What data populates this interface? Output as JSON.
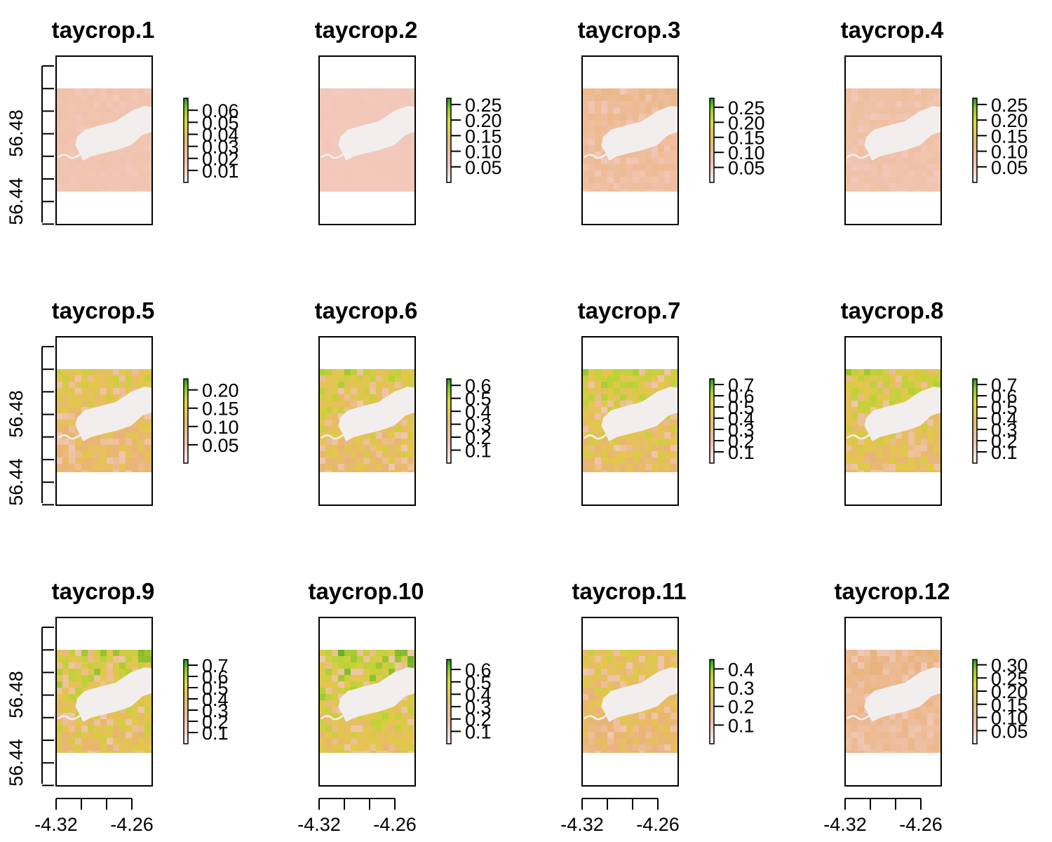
{
  "colors": {
    "water": "#f2eeee",
    "low": "#f2c9bd",
    "mid_low": "#e9b27b",
    "mid": "#e3c84a",
    "mid_high": "#b3d630",
    "high": "#2c9a20",
    "frame": "#000000"
  },
  "x_ticks": [
    "-4.32",
    "-4.26"
  ],
  "y_ticks": [
    "56.44",
    "56.48"
  ],
  "chart_data": [
    {
      "type": "heatmap",
      "title": "taycrop.1",
      "legend_ticks": [
        "0.01",
        "0.02",
        "0.03",
        "0.04",
        "0.05",
        "0.06"
      ],
      "legend_range": [
        0.0,
        0.07
      ],
      "level": 0.08
    },
    {
      "type": "heatmap",
      "title": "taycrop.2",
      "legend_ticks": [
        "0.05",
        "0.10",
        "0.15",
        "0.20",
        "0.25"
      ],
      "legend_range": [
        0.0,
        0.27
      ],
      "level": 0.02
    },
    {
      "type": "heatmap",
      "title": "taycrop.3",
      "legend_ticks": [
        "0.05",
        "0.10",
        "0.15",
        "0.20",
        "0.25"
      ],
      "legend_range": [
        0.0,
        0.28
      ],
      "level": 0.2
    },
    {
      "type": "heatmap",
      "title": "taycrop.4",
      "legend_ticks": [
        "0.05",
        "0.10",
        "0.15",
        "0.20",
        "0.25"
      ],
      "legend_range": [
        0.0,
        0.27
      ],
      "level": 0.12
    },
    {
      "type": "heatmap",
      "title": "taycrop.5",
      "legend_ticks": [
        "0.05",
        "0.10",
        "0.15",
        "0.20"
      ],
      "legend_range": [
        0.0,
        0.23
      ],
      "level": 0.55
    },
    {
      "type": "heatmap",
      "title": "taycrop.6",
      "legend_ticks": [
        "0.1",
        "0.2",
        "0.3",
        "0.4",
        "0.5",
        "0.6"
      ],
      "legend_range": [
        0.0,
        0.65
      ],
      "level": 0.62
    },
    {
      "type": "heatmap",
      "title": "taycrop.7",
      "legend_ticks": [
        "0.1",
        "0.2",
        "0.3",
        "0.4",
        "0.5",
        "0.6",
        "0.7"
      ],
      "legend_range": [
        0.0,
        0.75
      ],
      "level": 0.64
    },
    {
      "type": "heatmap",
      "title": "taycrop.8",
      "legend_ticks": [
        "0.1",
        "0.2",
        "0.3",
        "0.4",
        "0.5",
        "0.6",
        "0.7"
      ],
      "legend_range": [
        0.0,
        0.75
      ],
      "level": 0.64
    },
    {
      "type": "heatmap",
      "title": "taycrop.9",
      "legend_ticks": [
        "0.1",
        "0.2",
        "0.3",
        "0.4",
        "0.5",
        "0.6",
        "0.7"
      ],
      "legend_range": [
        0.0,
        0.75
      ],
      "level": 0.68
    },
    {
      "type": "heatmap",
      "title": "taycrop.10",
      "legend_ticks": [
        "0.1",
        "0.2",
        "0.3",
        "0.4",
        "0.5",
        "0.6"
      ],
      "legend_range": [
        0.0,
        0.68
      ],
      "level": 0.72
    },
    {
      "type": "heatmap",
      "title": "taycrop.11",
      "legend_ticks": [
        "0.1",
        "0.2",
        "0.3",
        "0.4"
      ],
      "legend_range": [
        0.0,
        0.45
      ],
      "level": 0.52
    },
    {
      "type": "heatmap",
      "title": "taycrop.12",
      "legend_ticks": [
        "0.05",
        "0.10",
        "0.15",
        "0.20",
        "0.25",
        "0.30"
      ],
      "legend_range": [
        0.0,
        0.32
      ],
      "level": 0.25
    }
  ]
}
